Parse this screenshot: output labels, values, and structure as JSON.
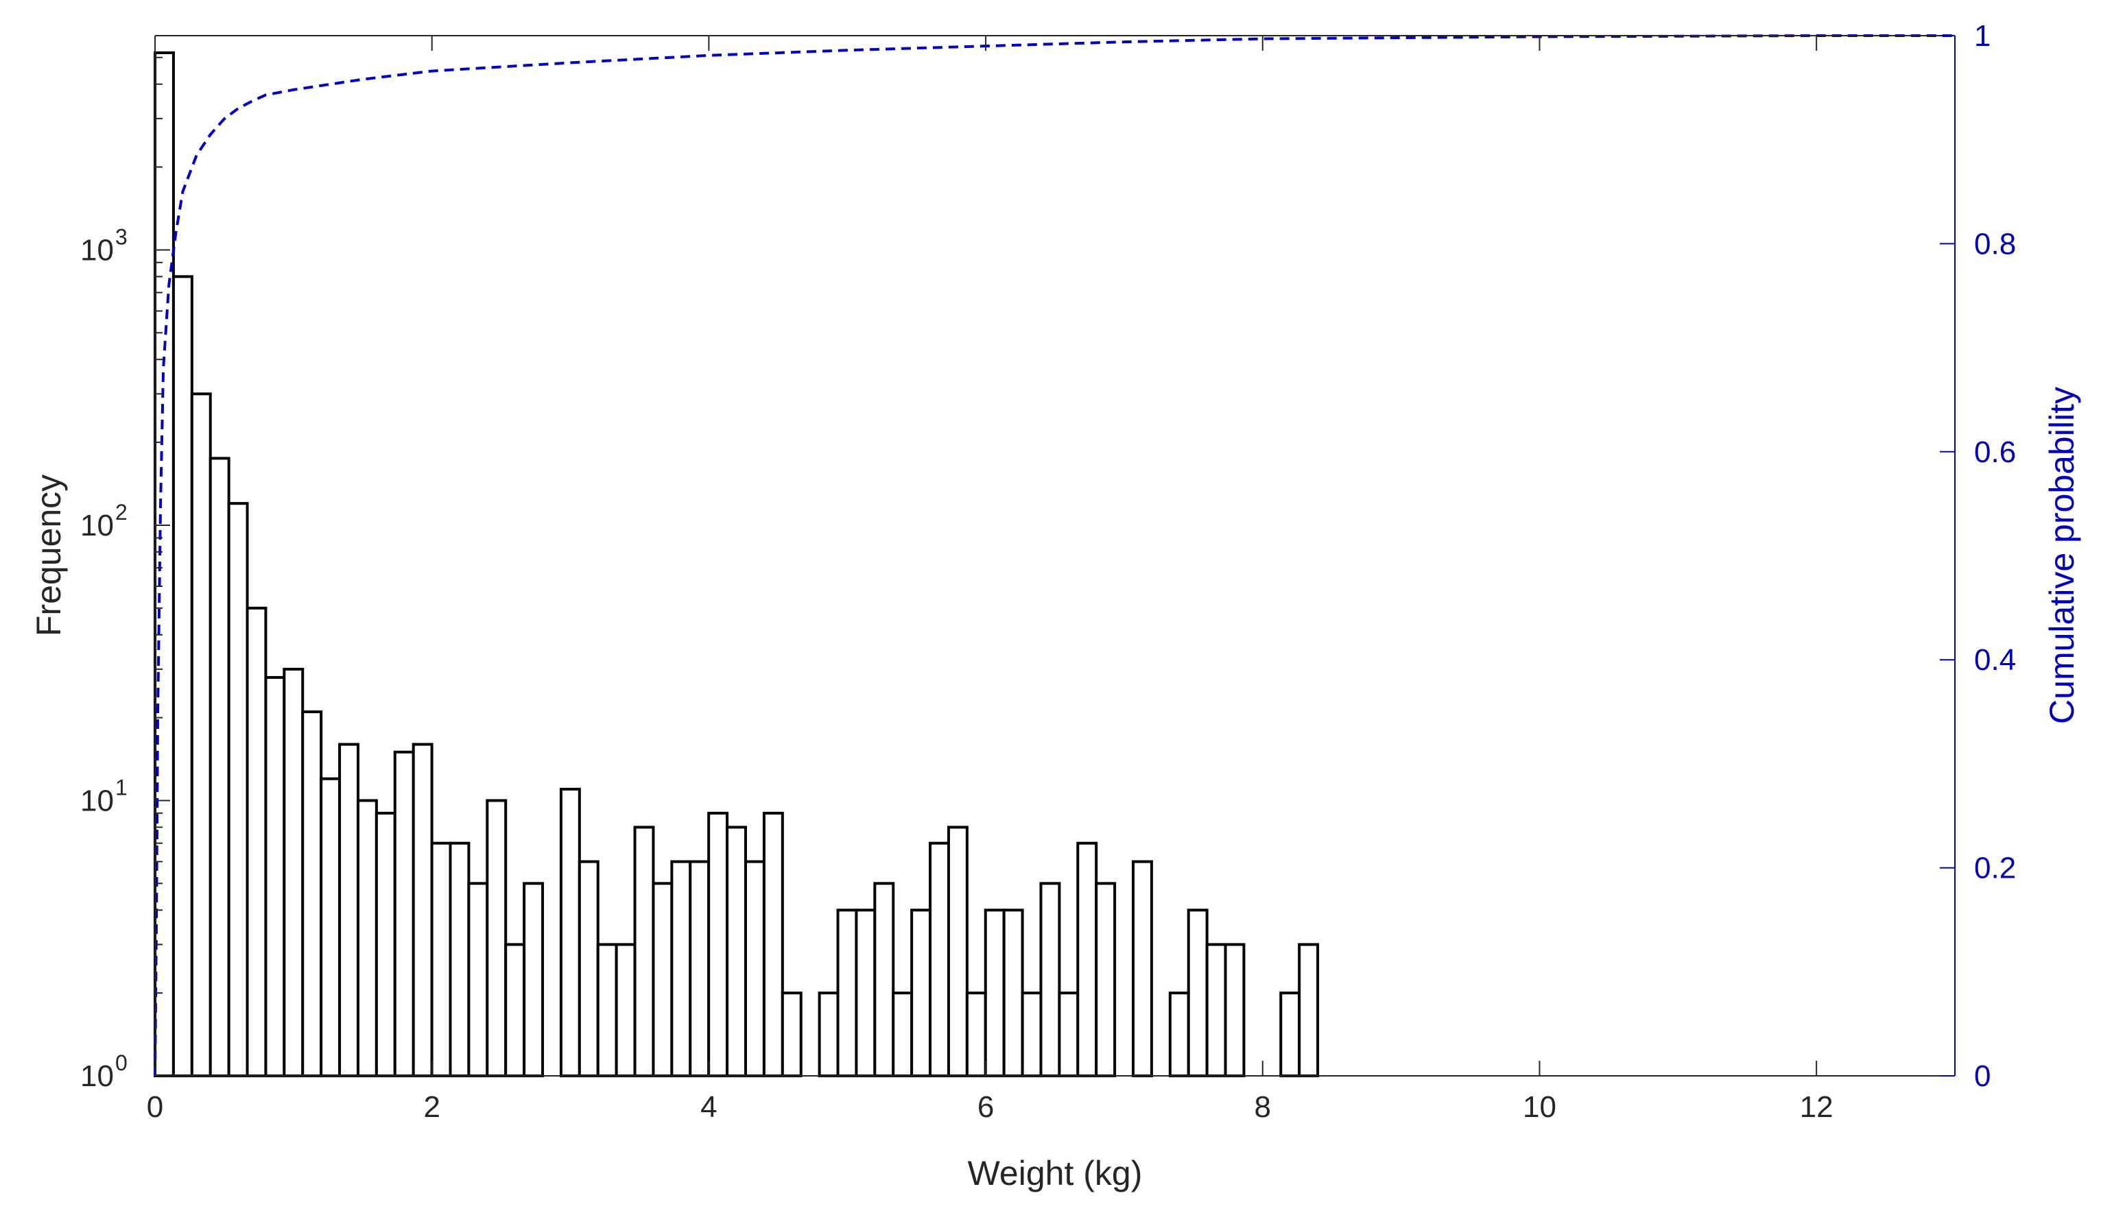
{
  "chart_data": {
    "type": "bar",
    "xlabel": "Weight (kg)",
    "ylabel": "Frequency",
    "ylabel_right": "Cumulative probability",
    "xlim": [
      0,
      13
    ],
    "ylim": [
      1,
      6000
    ],
    "yscale": "log",
    "ylim_right": [
      0,
      1
    ],
    "x_ticks": [
      "0",
      "2",
      "4",
      "6",
      "8",
      "10",
      "12"
    ],
    "x_tick_values": [
      0,
      2,
      4,
      6,
      8,
      10,
      12
    ],
    "y_ticks": [
      {
        "value": 1,
        "base": "10",
        "exp": "0"
      },
      {
        "value": 10,
        "base": "10",
        "exp": "1"
      },
      {
        "value": 100,
        "base": "10",
        "exp": "2"
      },
      {
        "value": 1000,
        "base": "10",
        "exp": "3"
      }
    ],
    "y_right_ticks": [
      "0",
      "0.2",
      "0.4",
      "0.6",
      "0.8",
      "1"
    ],
    "y_right_tick_values": [
      0,
      0.2,
      0.4,
      0.6,
      0.8,
      1
    ],
    "bin_width": 0.1333,
    "bin_start": 0,
    "frequency": [
      5200,
      800,
      300,
      175,
      120,
      50,
      28,
      30,
      21,
      12,
      16,
      10,
      9,
      15,
      16,
      7,
      7,
      5,
      10,
      3,
      5,
      1,
      11,
      6,
      3,
      3,
      8,
      5,
      6,
      6,
      9,
      8,
      6,
      9,
      2,
      1,
      2,
      4,
      4,
      5,
      2,
      4,
      7,
      8,
      2,
      4,
      4,
      2,
      5,
      2,
      7,
      5,
      1,
      6,
      1,
      2,
      4,
      3,
      3,
      1,
      1,
      2,
      3,
      1,
      1,
      1,
      1,
      1,
      1,
      1,
      1,
      1,
      1,
      1,
      1,
      1,
      1,
      1,
      1,
      1,
      1,
      1,
      1,
      1,
      1,
      1,
      1,
      1,
      1,
      1,
      1,
      1,
      1,
      1,
      1,
      1,
      1
    ],
    "series": [
      {
        "axis": "right",
        "style": "dashed",
        "color": "#0000cc",
        "x": [
          0,
          0.01,
          0.02,
          0.04,
          0.06,
          0.1,
          0.15,
          0.2,
          0.3,
          0.4,
          0.5,
          0.6,
          0.7,
          0.8,
          1.0,
          1.5,
          2.0,
          3.0,
          4.0,
          5.0,
          6.0,
          7.0,
          8.0,
          9.0,
          10.0,
          11.0,
          12.0,
          13.0
        ],
        "y": [
          0,
          0.15,
          0.35,
          0.55,
          0.68,
          0.76,
          0.81,
          0.85,
          0.885,
          0.905,
          0.92,
          0.93,
          0.937,
          0.943,
          0.948,
          0.958,
          0.966,
          0.974,
          0.981,
          0.986,
          0.99,
          0.994,
          0.997,
          0.998,
          0.999,
          0.9995,
          1.0,
          1.0
        ]
      }
    ],
    "colors": {
      "bar_edge": "#000000",
      "bar_fill": "#ffffff",
      "right_axis": "#0000c0",
      "left_axis": "#262626",
      "frame": "#262626"
    }
  }
}
